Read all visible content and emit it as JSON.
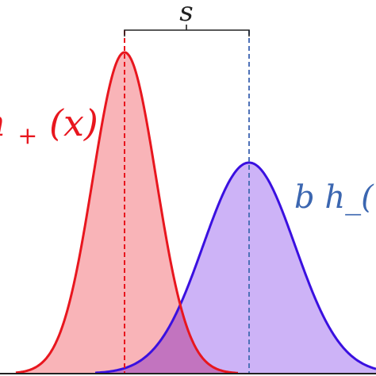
{
  "labels": {
    "separation": "s",
    "positive_curve": "h",
    "positive_subscript": "+",
    "positive_argument": "(x)",
    "negative_curve": "b h_("
  },
  "colors": {
    "positive_stroke": "#e8161e",
    "positive_fill": "#f9b4b8",
    "negative_stroke": "#3a10e0",
    "negative_fill": "#cdb3f7",
    "overlap_fill": "#c274bf",
    "negative_marker": "#4f72b8",
    "negative_label": "#3b66b0",
    "bracket": "#222222",
    "baseline": "#222222"
  }
}
